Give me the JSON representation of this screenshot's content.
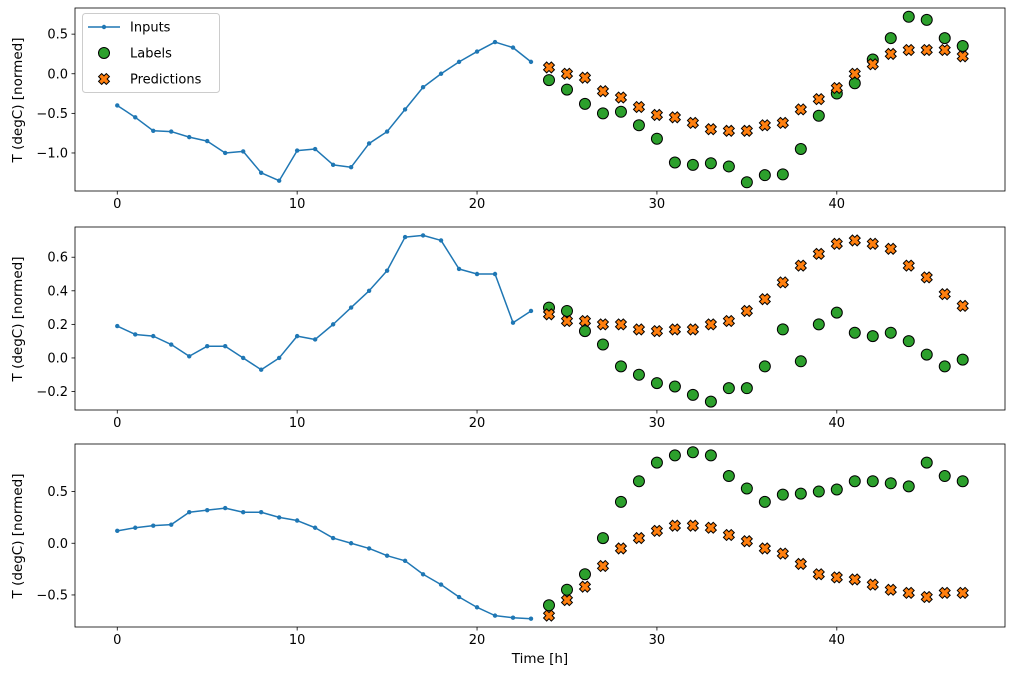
{
  "figure": {
    "xlabel": "Time [h]",
    "ylabel": "T (degC) [normed]",
    "legend": [
      "Inputs",
      "Labels",
      "Predictions"
    ],
    "legend_position": "upper left",
    "colors": {
      "inputs": "#1f77b4",
      "labels": "#2ca02c",
      "predictions": "#ff7f0e"
    },
    "background": "#ffffff"
  },
  "chart_data": [
    {
      "type": "line",
      "title": "",
      "xlabel": "",
      "ylabel": "T (degC) [normed]",
      "xlim": [
        -2.35,
        49.35
      ],
      "ylim": [
        -1.48,
        0.83
      ],
      "xticks": [
        0,
        10,
        20,
        30,
        40
      ],
      "xtick_labels": [
        "0",
        "10",
        "20",
        "30",
        "40"
      ],
      "yticks": [
        0.5,
        0.0,
        -0.5,
        -1.0
      ],
      "ytick_labels": [
        "0.5",
        "0.0",
        "−0.5",
        "−1.0"
      ],
      "grid": false,
      "legend_entries": [
        "Inputs",
        "Labels",
        "Predictions"
      ],
      "legend_position": "upper left",
      "series": [
        {
          "name": "Inputs",
          "type": "line",
          "marker": "dot",
          "color": "#1f77b4",
          "x": [
            0,
            1,
            2,
            3,
            4,
            5,
            6,
            7,
            8,
            9,
            10,
            11,
            12,
            13,
            14,
            15,
            16,
            17,
            18,
            19,
            20,
            21,
            22,
            23
          ],
          "y": [
            -0.4,
            -0.55,
            -0.72,
            -0.73,
            -0.8,
            -0.85,
            -1.0,
            -0.98,
            -1.25,
            -1.35,
            -0.97,
            -0.95,
            -1.15,
            -1.18,
            -0.88,
            -0.73,
            -0.45,
            -0.17,
            0.0,
            0.15,
            0.28,
            0.4,
            0.33,
            0.15
          ]
        },
        {
          "name": "Labels",
          "type": "circle",
          "marker": "circle",
          "color": "#2ca02c",
          "x": [
            24,
            25,
            26,
            27,
            28,
            29,
            30,
            31,
            32,
            33,
            34,
            35,
            36,
            37,
            38,
            39,
            40,
            41,
            42,
            43,
            44,
            45,
            46,
            47
          ],
          "y": [
            -0.08,
            -0.2,
            -0.38,
            -0.5,
            -0.48,
            -0.65,
            -0.82,
            -1.12,
            -1.15,
            -1.13,
            -1.17,
            -1.37,
            -1.28,
            -1.27,
            -0.95,
            -0.53,
            -0.25,
            -0.12,
            0.18,
            0.45,
            0.72,
            0.68,
            0.45,
            0.35
          ]
        },
        {
          "name": "Predictions",
          "type": "x",
          "marker": "X",
          "color": "#ff7f0e",
          "x": [
            24,
            25,
            26,
            27,
            28,
            29,
            30,
            31,
            32,
            33,
            34,
            35,
            36,
            37,
            38,
            39,
            40,
            41,
            42,
            43,
            44,
            45,
            46,
            47
          ],
          "y": [
            0.08,
            0.0,
            -0.05,
            -0.22,
            -0.3,
            -0.42,
            -0.52,
            -0.55,
            -0.62,
            -0.7,
            -0.72,
            -0.72,
            -0.65,
            -0.62,
            -0.45,
            -0.32,
            -0.18,
            0.0,
            0.12,
            0.25,
            0.3,
            0.3,
            0.3,
            0.22
          ]
        }
      ]
    },
    {
      "type": "line",
      "title": "",
      "xlabel": "",
      "ylabel": "T (degC) [normed]",
      "xlim": [
        -2.35,
        49.35
      ],
      "ylim": [
        -0.31,
        0.78
      ],
      "xticks": [
        0,
        10,
        20,
        30,
        40
      ],
      "xtick_labels": [
        "0",
        "10",
        "20",
        "30",
        "40"
      ],
      "yticks": [
        0.6,
        0.4,
        0.2,
        0.0,
        -0.2
      ],
      "ytick_labels": [
        "0.6",
        "0.4",
        "0.2",
        "0.0",
        "−0.2"
      ],
      "grid": false,
      "series": [
        {
          "name": "Inputs",
          "type": "line",
          "marker": "dot",
          "color": "#1f77b4",
          "x": [
            0,
            1,
            2,
            3,
            4,
            5,
            6,
            7,
            8,
            9,
            10,
            11,
            12,
            13,
            14,
            15,
            16,
            17,
            18,
            19,
            20,
            21,
            22,
            23
          ],
          "y": [
            0.19,
            0.14,
            0.13,
            0.08,
            0.01,
            0.07,
            0.07,
            0.0,
            -0.07,
            0.0,
            0.13,
            0.11,
            0.2,
            0.3,
            0.4,
            0.52,
            0.72,
            0.73,
            0.7,
            0.53,
            0.5,
            0.5,
            0.21,
            0.28
          ]
        },
        {
          "name": "Labels",
          "type": "circle",
          "marker": "circle",
          "color": "#2ca02c",
          "x": [
            24,
            25,
            26,
            27,
            28,
            29,
            30,
            31,
            32,
            33,
            34,
            35,
            36,
            37,
            38,
            39,
            40,
            41,
            42,
            43,
            44,
            45,
            46,
            47
          ],
          "y": [
            0.3,
            0.28,
            0.16,
            0.08,
            -0.05,
            -0.1,
            -0.15,
            -0.17,
            -0.22,
            -0.26,
            -0.18,
            -0.18,
            -0.05,
            0.17,
            -0.02,
            0.2,
            0.27,
            0.15,
            0.13,
            0.15,
            0.1,
            0.02,
            -0.05,
            -0.01
          ]
        },
        {
          "name": "Predictions",
          "type": "x",
          "marker": "X",
          "color": "#ff7f0e",
          "x": [
            24,
            25,
            26,
            27,
            28,
            29,
            30,
            31,
            32,
            33,
            34,
            35,
            36,
            37,
            38,
            39,
            40,
            41,
            42,
            43,
            44,
            45,
            46,
            47
          ],
          "y": [
            0.26,
            0.22,
            0.22,
            0.2,
            0.2,
            0.17,
            0.16,
            0.17,
            0.17,
            0.2,
            0.22,
            0.28,
            0.35,
            0.45,
            0.55,
            0.62,
            0.68,
            0.7,
            0.68,
            0.65,
            0.55,
            0.48,
            0.38,
            0.31
          ]
        }
      ]
    },
    {
      "type": "line",
      "title": "",
      "xlabel": "Time [h]",
      "ylabel": "T (degC) [normed]",
      "xlim": [
        -2.35,
        49.35
      ],
      "ylim": [
        -0.81,
        0.96
      ],
      "xticks": [
        0,
        10,
        20,
        30,
        40
      ],
      "xtick_labels": [
        "0",
        "10",
        "20",
        "30",
        "40"
      ],
      "yticks": [
        0.5,
        0.0,
        -0.5
      ],
      "ytick_labels": [
        "0.5",
        "0.0",
        "−0.5"
      ],
      "grid": false,
      "series": [
        {
          "name": "Inputs",
          "type": "line",
          "marker": "dot",
          "color": "#1f77b4",
          "x": [
            0,
            1,
            2,
            3,
            4,
            5,
            6,
            7,
            8,
            9,
            10,
            11,
            12,
            13,
            14,
            15,
            16,
            17,
            18,
            19,
            20,
            21,
            22,
            23
          ],
          "y": [
            0.12,
            0.15,
            0.17,
            0.18,
            0.3,
            0.32,
            0.34,
            0.3,
            0.3,
            0.25,
            0.22,
            0.15,
            0.05,
            0.0,
            -0.05,
            -0.12,
            -0.17,
            -0.3,
            -0.4,
            -0.52,
            -0.62,
            -0.7,
            -0.72,
            -0.73
          ]
        },
        {
          "name": "Labels",
          "type": "circle",
          "marker": "circle",
          "color": "#2ca02c",
          "x": [
            24,
            25,
            26,
            27,
            28,
            29,
            30,
            31,
            32,
            33,
            34,
            35,
            36,
            37,
            38,
            39,
            40,
            41,
            42,
            43,
            44,
            45,
            46,
            47
          ],
          "y": [
            -0.6,
            -0.45,
            -0.3,
            0.05,
            0.4,
            0.6,
            0.78,
            0.85,
            0.88,
            0.85,
            0.65,
            0.53,
            0.4,
            0.47,
            0.48,
            0.5,
            0.52,
            0.6,
            0.6,
            0.58,
            0.55,
            0.78,
            0.65,
            0.6
          ]
        },
        {
          "name": "Predictions",
          "type": "x",
          "marker": "X",
          "color": "#ff7f0e",
          "x": [
            24,
            25,
            26,
            27,
            28,
            29,
            30,
            31,
            32,
            33,
            34,
            35,
            36,
            37,
            38,
            39,
            40,
            41,
            42,
            43,
            44,
            45,
            46,
            47
          ],
          "y": [
            -0.7,
            -0.55,
            -0.42,
            -0.22,
            -0.05,
            0.05,
            0.12,
            0.17,
            0.17,
            0.15,
            0.08,
            0.02,
            -0.05,
            -0.1,
            -0.2,
            -0.3,
            -0.33,
            -0.35,
            -0.4,
            -0.45,
            -0.48,
            -0.52,
            -0.48,
            -0.48
          ]
        }
      ]
    }
  ]
}
